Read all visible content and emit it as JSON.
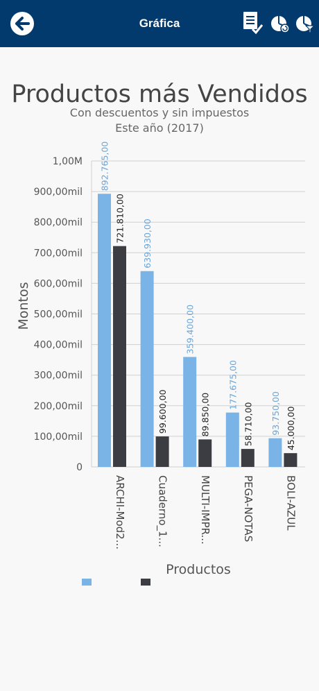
{
  "header": {
    "title": "Gráfica",
    "icons": [
      "back-arrow-icon",
      "report-check-icon",
      "pie-chart-cycle-icon",
      "pie-chart-filter-icon"
    ]
  },
  "colors": {
    "header_bg": "#023a6d",
    "series1": "#7ab3e6",
    "series2": "#3b3d42",
    "label1": "#6aa5da"
  },
  "chart_data": {
    "type": "bar",
    "title": "Productos más Vendidos",
    "subtitle": [
      "Con descuentos y sin impuestos",
      "Este año (2017)"
    ],
    "xlabel": "Productos",
    "ylabel": "Montos",
    "ylim": [
      0,
      1000000
    ],
    "yticks": [
      "0",
      "100,00mil",
      "200,00mil",
      "300,00mil",
      "400,00mil",
      "500,00mil",
      "600,00mil",
      "700,00mil",
      "800,00mil",
      "900,00mil",
      "1,00M"
    ],
    "grid": true,
    "categories": [
      "ARCHI-Mod2...",
      "Cuaderno_1...",
      "MULTI-IMPR...",
      "PEGA-NOTAS",
      "BOLI-AZUL"
    ],
    "series": [
      {
        "values": [
          892765,
          639930,
          359400,
          177675,
          93750
        ],
        "labels": [
          "892.765,00",
          "639.930,00",
          "359.400,00",
          "177.675,00",
          "93.750,00"
        ]
      },
      {
        "values": [
          721810,
          99600,
          89850,
          58710,
          45000
        ],
        "labels": [
          "721.810,00",
          "99.600,00",
          "89.850,00",
          "58.710,00",
          "45.000,00"
        ]
      }
    ]
  }
}
